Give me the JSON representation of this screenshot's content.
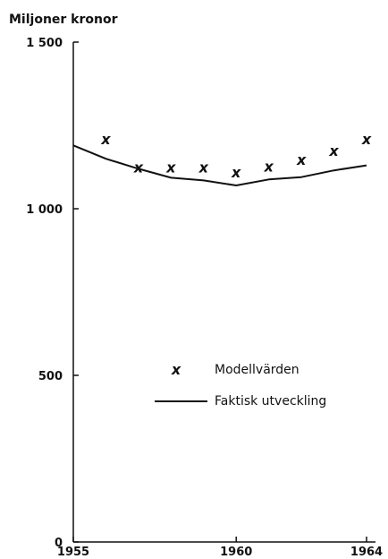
{
  "chart_data": {
    "type": "line",
    "ylabel": "Miljoner kronor",
    "title": "",
    "xlim": [
      1955,
      1964
    ],
    "ylim": [
      0,
      1500
    ],
    "x_ticks": [
      "1955",
      "1960",
      "1964"
    ],
    "y_ticks": [
      "0",
      "500",
      "1 000",
      "1 500"
    ],
    "legend_position": "lower-right",
    "series": [
      {
        "name": "Modellvärden",
        "style": "markers",
        "marker": "x",
        "x": [
          1956,
          1957,
          1958,
          1959,
          1960,
          1961,
          1962,
          1963,
          1964
        ],
        "y": [
          1210,
          1125,
          1125,
          1125,
          1110,
          1128,
          1148,
          1175,
          1210
        ]
      },
      {
        "name": "Faktisk utveckling",
        "style": "line",
        "x": [
          1955,
          1956,
          1957,
          1958,
          1959,
          1960,
          1961,
          1962,
          1963,
          1964
        ],
        "y": [
          1190,
          1150,
          1120,
          1093,
          1085,
          1070,
          1088,
          1095,
          1115,
          1130
        ]
      }
    ]
  },
  "marker_glyph": "x",
  "color": "#111111"
}
